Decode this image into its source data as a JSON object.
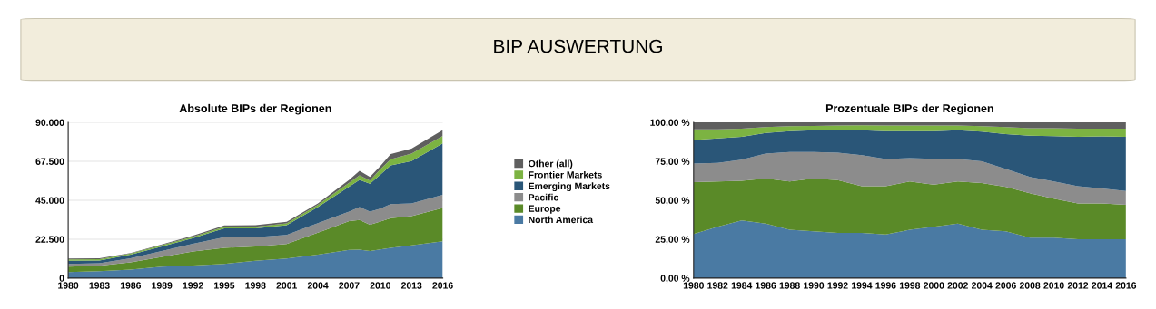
{
  "chart_data": [
    {
      "type": "area",
      "stacked": true,
      "title": "Absolute BIPs der Regionen",
      "annotations": [
        "BIP AUSWERTUNG"
      ],
      "x": [
        1980,
        1983,
        1986,
        1989,
        1992,
        1995,
        1998,
        2001,
        2004,
        2007,
        2008,
        2009,
        2010,
        2011,
        2013,
        2016
      ],
      "series": [
        {
          "name": "North America",
          "color": "#4a7aa3",
          "values": [
            3500,
            4000,
            4900,
            6600,
            7300,
            8200,
            10000,
            11400,
            13600,
            16300,
            16400,
            15700,
            16600,
            17500,
            18900,
            21300
          ]
        },
        {
          "name": "Europe",
          "color": "#5a8a28",
          "values": [
            3100,
            3200,
            4200,
            5600,
            8100,
            9300,
            8300,
            8300,
            12600,
            16600,
            17200,
            15200,
            16100,
            17100,
            16900,
            19200
          ]
        },
        {
          "name": "Pacific",
          "color": "#8c8c8c",
          "values": [
            1600,
            1400,
            2400,
            3500,
            4500,
            6100,
            5300,
            5300,
            5600,
            5500,
            7500,
            7500,
            7500,
            8200,
            7400,
            7600
          ]
        },
        {
          "name": "Emerging Markets",
          "color": "#2a5678",
          "values": [
            1800,
            1500,
            2000,
            2600,
            3200,
            5200,
            5200,
            5600,
            9300,
            14400,
            15700,
            16100,
            19600,
            22400,
            24400,
            29700
          ]
        },
        {
          "name": "Frontier Markets",
          "color": "#7cb342",
          "values": [
            800,
            900,
            700,
            700,
            800,
            900,
            900,
            1000,
            1200,
            2200,
            2600,
            1900,
            3100,
            3500,
            4400,
            4400
          ]
        },
        {
          "name": "Other (all)",
          "color": "#5f5f5f",
          "values": [
            600,
            500,
            300,
            400,
            600,
            700,
            900,
            900,
            900,
            1800,
            2600,
            2100,
            1800,
            3000,
            2800,
            3400
          ]
        }
      ],
      "xlim": [
        1980,
        2016
      ],
      "xticks": [
        1980,
        1983,
        1986,
        1989,
        1992,
        1995,
        1998,
        2001,
        2004,
        2007,
        2010,
        2013,
        2016
      ],
      "ylim": [
        0,
        90000
      ],
      "yticks": [
        0,
        {
          "value": 22500,
          "label": "22.500"
        },
        {
          "value": 45000,
          "label": "45.000"
        },
        {
          "value": 67500,
          "label": "67.500"
        },
        {
          "value": 90000,
          "label": "90.000"
        }
      ],
      "grid": "y",
      "legend": "right"
    },
    {
      "type": "area",
      "stacked": true,
      "title": "Prozentuale BIPs der Regionen",
      "x": [
        1980,
        1982,
        1984,
        1986,
        1988,
        1990,
        1992,
        1994,
        1996,
        1998,
        2000,
        2002,
        2004,
        2006,
        2008,
        2010,
        2012,
        2014,
        2016
      ],
      "series": [
        {
          "color": "#4a7aa3",
          "values": [
            28.3,
            33,
            37,
            35,
            31,
            30,
            29,
            29,
            28,
            31,
            33,
            35,
            31,
            30,
            26,
            26,
            25,
            25,
            25
          ]
        },
        {
          "color": "#5a8a28",
          "values": [
            33.3,
            29,
            25.5,
            29,
            31,
            34,
            34,
            30,
            31,
            31,
            27,
            27,
            30,
            28.5,
            28.5,
            25,
            23,
            23,
            22
          ]
        },
        {
          "color": "#8c8c8c",
          "values": [
            11.9,
            12,
            13.5,
            16,
            19,
            17,
            17.5,
            20,
            17.5,
            15,
            16.5,
            14.5,
            14,
            11.5,
            10.5,
            11,
            11,
            9.5,
            9
          ]
        },
        {
          "color": "#2a5678",
          "values": [
            15.2,
            15.7,
            14.7,
            13.2,
            13.4,
            13.9,
            14.4,
            15.9,
            17.9,
            17.4,
            17.9,
            18.4,
            19,
            22.4,
            26.4,
            29.2,
            31.7,
            33.5,
            34.7
          ]
        },
        {
          "color": "#7cb342",
          "values": [
            6.8,
            5.8,
            5.3,
            3.8,
            3.1,
            2.8,
            3.1,
            3.3,
            3.6,
            3.6,
            3.6,
            3.1,
            3.5,
            4.6,
            4.8,
            5,
            5.3,
            5,
            5.3
          ]
        },
        {
          "color": "#5f5f5f",
          "values": [
            4.5,
            4.5,
            4,
            3,
            2.5,
            2.3,
            2,
            1.8,
            2,
            2,
            2,
            2,
            2.5,
            3,
            3.8,
            3.8,
            4,
            4,
            4
          ]
        }
      ],
      "xlim": [
        1980,
        2016
      ],
      "xticks": [
        1980,
        1982,
        1984,
        1986,
        1988,
        1990,
        1992,
        1994,
        1996,
        1998,
        2000,
        2002,
        2004,
        2006,
        2008,
        2010,
        2012,
        2014,
        2016
      ],
      "ylim": [
        0,
        100
      ],
      "yticks": [
        {
          "value": 0,
          "label": "0,00 %"
        },
        {
          "value": 25,
          "label": "25,00 %"
        },
        {
          "value": 50,
          "label": "50,00 %"
        },
        {
          "value": 75,
          "label": "75,00 %"
        },
        {
          "value": 100,
          "label": "100,00 %"
        }
      ]
    }
  ]
}
